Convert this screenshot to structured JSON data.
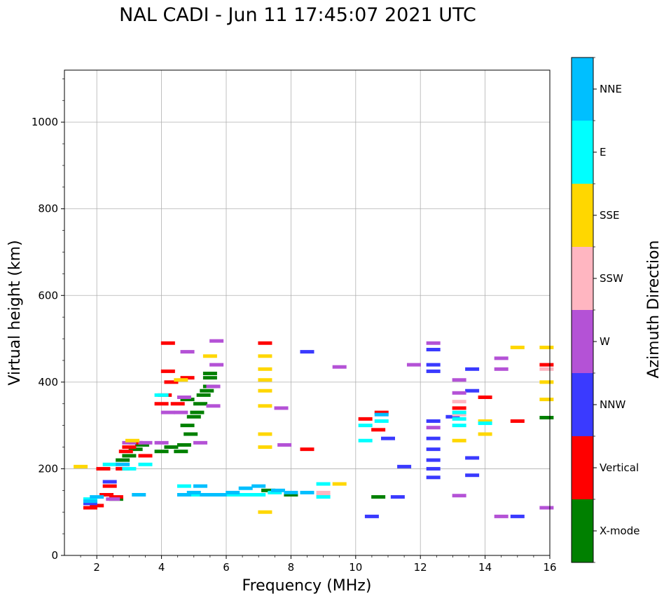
{
  "chart_data": {
    "type": "scatter",
    "title": "NAL CADI - Jun 11 17:45:07 2021 UTC",
    "xlabel": "Frequency (MHz)",
    "ylabel": "Virtual height (km)",
    "xlim": [
      1,
      16
    ],
    "ylim": [
      0,
      1120
    ],
    "xticks": [
      2,
      4,
      6,
      8,
      10,
      12,
      14,
      16
    ],
    "yticks": [
      0,
      200,
      400,
      600,
      800,
      1000
    ],
    "grid": true,
    "colorbar": {
      "label": "Azimuth Direction",
      "categories": [
        "X-mode",
        "Vertical",
        "NNW",
        "W",
        "SSW",
        "SSE",
        "E",
        "NNE"
      ],
      "colors": [
        "#008000",
        "#ff0000",
        "#3a3aff",
        "#b452d6",
        "#ffb6c1",
        "#ffd700",
        "#00ffff",
        "#00bfff"
      ]
    },
    "series": [
      {
        "name": "X-mode",
        "points": [
          [
            2.6,
            130
          ],
          [
            2.8,
            220
          ],
          [
            3.0,
            230
          ],
          [
            3.2,
            245
          ],
          [
            3.4,
            255
          ],
          [
            4.0,
            240
          ],
          [
            4.3,
            250
          ],
          [
            4.6,
            240
          ],
          [
            4.7,
            255
          ],
          [
            4.8,
            300
          ],
          [
            4.9,
            280
          ],
          [
            5.0,
            320
          ],
          [
            5.1,
            330
          ],
          [
            5.2,
            350
          ],
          [
            5.3,
            370
          ],
          [
            5.4,
            380
          ],
          [
            5.5,
            390
          ],
          [
            5.5,
            410
          ],
          [
            5.5,
            420
          ],
          [
            4.8,
            360
          ],
          [
            7.3,
            150
          ],
          [
            8.0,
            140
          ],
          [
            10.7,
            135
          ],
          [
            15.9,
            318
          ]
        ]
      },
      {
        "name": "Vertical",
        "points": [
          [
            1.8,
            110
          ],
          [
            2.0,
            115
          ],
          [
            2.2,
            200
          ],
          [
            2.3,
            140
          ],
          [
            2.4,
            160
          ],
          [
            2.6,
            135
          ],
          [
            2.8,
            200
          ],
          [
            2.9,
            240
          ],
          [
            3.0,
            250
          ],
          [
            3.2,
            260
          ],
          [
            3.5,
            230
          ],
          [
            4.0,
            350
          ],
          [
            4.1,
            370
          ],
          [
            4.2,
            425
          ],
          [
            4.2,
            490
          ],
          [
            4.3,
            400
          ],
          [
            4.5,
            350
          ],
          [
            4.8,
            410
          ],
          [
            7.2,
            490
          ],
          [
            8.5,
            245
          ],
          [
            10.7,
            290
          ],
          [
            10.8,
            330
          ],
          [
            10.3,
            315
          ],
          [
            13.2,
            340
          ],
          [
            14.0,
            365
          ],
          [
            15.0,
            310
          ],
          [
            15.9,
            440
          ]
        ]
      },
      {
        "name": "NNW",
        "points": [
          [
            1.8,
            120
          ],
          [
            2.4,
            170
          ],
          [
            11.0,
            270
          ],
          [
            11.3,
            135
          ],
          [
            12.4,
            180
          ],
          [
            12.4,
            200
          ],
          [
            12.4,
            220
          ],
          [
            12.4,
            245
          ],
          [
            12.4,
            270
          ],
          [
            12.4,
            310
          ],
          [
            12.4,
            425
          ],
          [
            12.4,
            440
          ],
          [
            12.4,
            475
          ],
          [
            13.0,
            320
          ],
          [
            13.6,
            185
          ],
          [
            13.6,
            225
          ],
          [
            13.6,
            380
          ],
          [
            13.6,
            430
          ],
          [
            15.0,
            90
          ],
          [
            11.5,
            205
          ],
          [
            10.5,
            90
          ],
          [
            8.5,
            470
          ]
        ]
      },
      {
        "name": "W",
        "points": [
          [
            2.5,
            130
          ],
          [
            3.0,
            260
          ],
          [
            3.5,
            260
          ],
          [
            4.0,
            260
          ],
          [
            4.2,
            330
          ],
          [
            4.6,
            330
          ],
          [
            4.7,
            365
          ],
          [
            4.8,
            470
          ],
          [
            5.2,
            260
          ],
          [
            5.6,
            345
          ],
          [
            5.6,
            390
          ],
          [
            5.7,
            440
          ],
          [
            5.7,
            495
          ],
          [
            7.7,
            340
          ],
          [
            7.8,
            255
          ],
          [
            12.4,
            295
          ],
          [
            12.4,
            490
          ],
          [
            13.2,
            138
          ],
          [
            13.2,
            375
          ],
          [
            13.2,
            405
          ],
          [
            14.5,
            430
          ],
          [
            14.5,
            455
          ],
          [
            14.5,
            90
          ],
          [
            15.9,
            110
          ],
          [
            9.5,
            435
          ],
          [
            11.8,
            440
          ]
        ]
      },
      {
        "name": "SSW",
        "points": [
          [
            9.0,
            140
          ],
          [
            9.0,
            145
          ],
          [
            13.2,
            325
          ],
          [
            13.2,
            355
          ],
          [
            15.9,
            430
          ]
        ]
      },
      {
        "name": "SSE",
        "points": [
          [
            1.5,
            205
          ],
          [
            3.1,
            265
          ],
          [
            4.6,
            405
          ],
          [
            5.5,
            460
          ],
          [
            7.2,
            100
          ],
          [
            7.2,
            250
          ],
          [
            7.2,
            280
          ],
          [
            7.2,
            345
          ],
          [
            7.2,
            380
          ],
          [
            7.2,
            405
          ],
          [
            7.2,
            430
          ],
          [
            7.2,
            460
          ],
          [
            9.5,
            165
          ],
          [
            13.2,
            265
          ],
          [
            14.0,
            280
          ],
          [
            14.0,
            310
          ],
          [
            15.0,
            480
          ],
          [
            15.9,
            360
          ],
          [
            15.9,
            400
          ],
          [
            15.9,
            480
          ]
        ]
      },
      {
        "name": "E",
        "points": [
          [
            1.8,
            130
          ],
          [
            2.4,
            210
          ],
          [
            3.0,
            200
          ],
          [
            3.5,
            210
          ],
          [
            4.0,
            370
          ],
          [
            4.7,
            160
          ],
          [
            5.0,
            140
          ],
          [
            5.5,
            140
          ],
          [
            6.2,
            140
          ],
          [
            6.6,
            140
          ],
          [
            7.0,
            140
          ],
          [
            7.5,
            145
          ],
          [
            9.0,
            135
          ],
          [
            9.0,
            165
          ],
          [
            10.3,
            265
          ],
          [
            10.3,
            300
          ],
          [
            10.8,
            310
          ],
          [
            13.2,
            300
          ],
          [
            13.2,
            315
          ],
          [
            13.2,
            330
          ],
          [
            14.0,
            305
          ]
        ]
      },
      {
        "name": "NNE",
        "points": [
          [
            1.8,
            125
          ],
          [
            2.0,
            135
          ],
          [
            2.8,
            210
          ],
          [
            3.3,
            140
          ],
          [
            4.7,
            140
          ],
          [
            5.0,
            145
          ],
          [
            5.2,
            160
          ],
          [
            5.4,
            140
          ],
          [
            5.8,
            140
          ],
          [
            6.2,
            145
          ],
          [
            6.6,
            155
          ],
          [
            7.0,
            160
          ],
          [
            7.6,
            150
          ],
          [
            8.0,
            145
          ],
          [
            8.5,
            145
          ],
          [
            10.8,
            325
          ]
        ]
      }
    ]
  }
}
